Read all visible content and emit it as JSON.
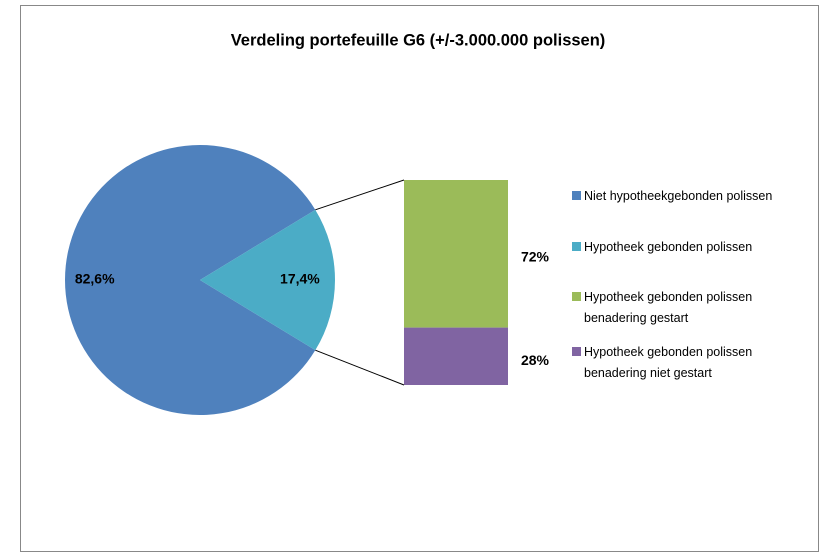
{
  "chart_data": {
    "type": "pie",
    "title": "Verdeling portefeuille G6 (+/-3.000.000 polissen)",
    "pie": {
      "categories": [
        "Niet hypotheekgebonden polissen",
        "Hypotheek gebonden polissen"
      ],
      "values": [
        82.6,
        17.4
      ],
      "value_labels": [
        "82,6%",
        "17,4%"
      ],
      "colors": [
        "#4f81bd",
        "#4bacc6"
      ]
    },
    "bar": {
      "categories": [
        "Hypotheek gebonden polissen benadering gestart",
        "Hypotheek gebonden polissen benadering niet gestart"
      ],
      "values": [
        72,
        28
      ],
      "value_labels": [
        "72%",
        "28%"
      ],
      "colors": [
        "#9bbb59",
        "#8064a2"
      ]
    }
  }
}
